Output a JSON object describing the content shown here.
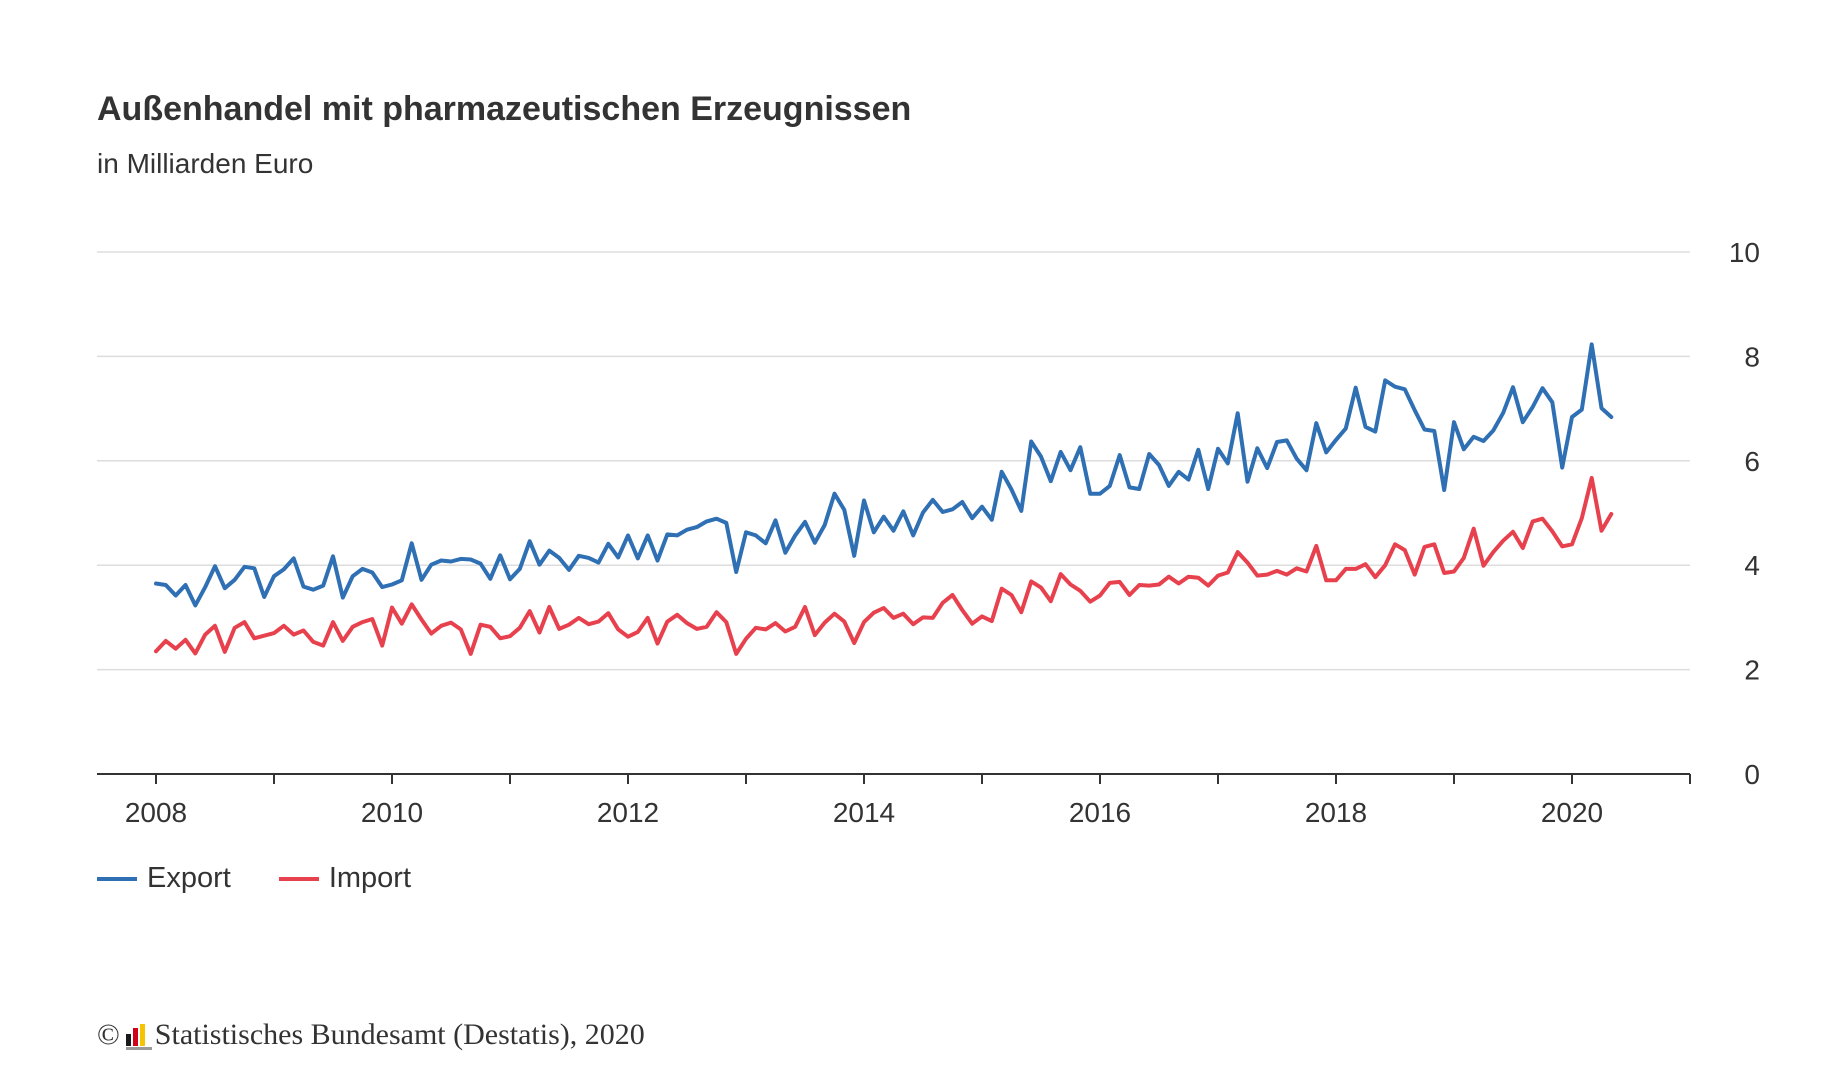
{
  "title": "Außenhandel mit pharmazeutischen Erzeugnissen",
  "subtitle": "in Milliarden Euro",
  "footer": {
    "copyright_symbol": "©",
    "logo_colors": [
      "#1a1a1a",
      "#d0021b",
      "#f5c400"
    ],
    "text": "Statistisches Bundesamt (Destatis), 2020"
  },
  "chart_data": {
    "type": "line",
    "title": "Außenhandel mit pharmazeutischen Erzeugnissen",
    "subtitle": "in Milliarden Euro",
    "x_start": "2008-01",
    "x_end": "2020-05",
    "xlim": [
      "2007-07",
      "2021-01"
    ],
    "x_tick_labels": [
      "2008",
      "2010",
      "2012",
      "2014",
      "2016",
      "2018",
      "2020"
    ],
    "ylim": [
      0,
      10
    ],
    "y_ticks": [
      0,
      2,
      4,
      6,
      8,
      10
    ],
    "y_axis_position": "right",
    "grid": true,
    "legend_position": "bottom-left",
    "series": [
      {
        "name": "Export",
        "color": "#2f6fb3",
        "values": [
          3.65,
          3.62,
          3.42,
          3.62,
          3.23,
          3.58,
          3.98,
          3.56,
          3.72,
          3.97,
          3.94,
          3.39,
          3.79,
          3.92,
          4.13,
          3.59,
          3.53,
          3.61,
          4.17,
          3.38,
          3.79,
          3.93,
          3.86,
          3.58,
          3.63,
          3.71,
          4.42,
          3.72,
          4.01,
          4.09,
          4.07,
          4.12,
          4.11,
          4.03,
          3.74,
          4.19,
          3.73,
          3.93,
          4.46,
          4.01,
          4.28,
          4.14,
          3.91,
          4.18,
          4.14,
          4.05,
          4.41,
          4.15,
          4.57,
          4.13,
          4.57,
          4.09,
          4.59,
          4.57,
          4.68,
          4.73,
          4.84,
          4.89,
          4.81,
          3.87,
          4.63,
          4.57,
          4.42,
          4.86,
          4.24,
          4.57,
          4.83,
          4.43,
          4.77,
          5.37,
          5.06,
          4.18,
          5.24,
          4.63,
          4.93,
          4.66,
          5.03,
          4.57,
          5.01,
          5.25,
          5.02,
          5.07,
          5.21,
          4.9,
          5.12,
          4.87,
          5.79,
          5.45,
          5.04,
          6.37,
          6.08,
          5.61,
          6.17,
          5.82,
          6.26,
          5.37,
          5.37,
          5.52,
          6.11,
          5.49,
          5.46,
          6.13,
          5.92,
          5.52,
          5.79,
          5.64,
          6.21,
          5.46,
          6.23,
          5.95,
          6.91,
          5.6,
          6.24,
          5.86,
          6.36,
          6.39,
          6.04,
          5.82,
          6.72,
          6.16,
          6.4,
          6.62,
          7.4,
          6.65,
          6.56,
          7.54,
          7.42,
          7.37,
          6.97,
          6.6,
          6.57,
          5.44,
          6.74,
          6.22,
          6.46,
          6.38,
          6.58,
          6.92,
          7.41,
          6.74,
          7.03,
          7.39,
          7.12,
          5.87,
          6.84,
          6.98,
          8.23,
          7.01,
          6.84
        ]
      },
      {
        "name": "Import",
        "color": "#e8414e",
        "values": [
          2.35,
          2.55,
          2.4,
          2.57,
          2.31,
          2.67,
          2.84,
          2.34,
          2.8,
          2.91,
          2.6,
          2.65,
          2.7,
          2.84,
          2.67,
          2.75,
          2.53,
          2.46,
          2.91,
          2.55,
          2.82,
          2.91,
          2.97,
          2.46,
          3.19,
          2.88,
          3.25,
          2.96,
          2.69,
          2.84,
          2.9,
          2.77,
          2.3,
          2.86,
          2.82,
          2.6,
          2.64,
          2.8,
          3.12,
          2.71,
          3.2,
          2.78,
          2.86,
          2.99,
          2.87,
          2.92,
          3.08,
          2.77,
          2.63,
          2.72,
          2.99,
          2.5,
          2.92,
          3.05,
          2.89,
          2.78,
          2.82,
          3.1,
          2.91,
          2.3,
          2.59,
          2.8,
          2.77,
          2.89,
          2.73,
          2.82,
          3.2,
          2.66,
          2.9,
          3.07,
          2.92,
          2.51,
          2.91,
          3.09,
          3.18,
          2.99,
          3.07,
          2.87,
          3.0,
          2.99,
          3.28,
          3.43,
          3.14,
          2.88,
          3.02,
          2.93,
          3.55,
          3.43,
          3.1,
          3.69,
          3.57,
          3.31,
          3.83,
          3.63,
          3.51,
          3.3,
          3.42,
          3.66,
          3.68,
          3.43,
          3.62,
          3.61,
          3.63,
          3.78,
          3.65,
          3.78,
          3.76,
          3.61,
          3.8,
          3.86,
          4.25,
          4.05,
          3.8,
          3.82,
          3.89,
          3.82,
          3.94,
          3.88,
          4.37,
          3.71,
          3.71,
          3.93,
          3.93,
          4.02,
          3.77,
          4.0,
          4.4,
          4.29,
          3.82,
          4.35,
          4.4,
          3.85,
          3.88,
          4.14,
          4.7,
          3.99,
          4.25,
          4.47,
          4.64,
          4.33,
          4.84,
          4.89,
          4.65,
          4.36,
          4.4,
          4.9,
          5.67,
          4.66,
          4.98
        ]
      }
    ]
  }
}
